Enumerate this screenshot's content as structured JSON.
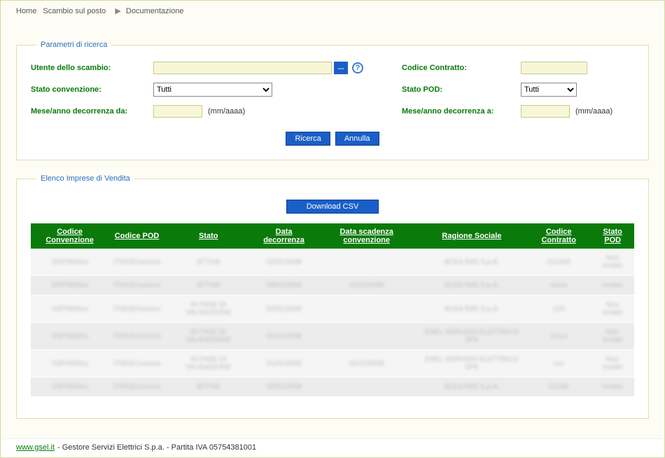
{
  "breadcrumb": {
    "home": "Home",
    "scambio": "Scambio sul posto",
    "documentazione": "Documentazione"
  },
  "fieldset1": {
    "legend": "Parametri di ricerca",
    "utente_label": "Utente dello scambio:",
    "utente_value": "",
    "ellipsis_label": "...",
    "codice_contratto_label": "Codice Contratto:",
    "codice_contratto_value": "",
    "stato_convenzione_label": "Stato convenzione:",
    "stato_convenzione_value": "Tutti",
    "stato_pod_label": "Stato POD:",
    "stato_pod_value": "Tutti",
    "decorrenza_da_label": "Mese/anno decorrenza da:",
    "decorrenza_da_value": "",
    "decorrenza_a_label": "Mese/anno decorrenza a:",
    "decorrenza_a_value": "",
    "hint": "(mm/aaaa)",
    "ricerca_btn": "Ricerca",
    "annulla_btn": "Annulla"
  },
  "fieldset2": {
    "legend": "Elenco Imprese di Vendita",
    "csv_btn": "Download CSV",
    "columns": {
      "c1": "Codice Convenzione",
      "c2": "Codice POD",
      "c3": "Stato",
      "c4": "Data decorrenza",
      "c5": "Data scadenza convenzione",
      "c6": "Ragione Sociale",
      "c7": "Codice Contratto",
      "c8": "Stato POD"
    },
    "rows": [
      {
        "c1": "SSP0000xx",
        "c2": "IT001E1xxxxxx",
        "c3": "ATTIVA",
        "c4": "01/01/2008",
        "c5": "",
        "c6": "ACEA RdS S.p.A.",
        "c7": "012345",
        "c8": "Non inviato"
      },
      {
        "c1": "SSP0000xx",
        "c2": "IT001E1xxxxxx",
        "c3": "ATTIVA",
        "c4": "06/01/2008",
        "c5": "31/12/2009",
        "c6": "ACEA RdS S.p.A.",
        "c7": "xxxxx",
        "c8": "Inviato"
      },
      {
        "c1": "SSP0000xx",
        "c2": "IT001E0xxxxxx",
        "c3": "IN FASE DI VALIDAZIONE",
        "c4": "02/01/2008",
        "c5": "",
        "c6": "ACEA RdS S.p.A.",
        "c7": "123",
        "c8": "Non inviato"
      },
      {
        "c1": "SSP0000xx",
        "c2": "IT001E1xxxxxx",
        "c3": "IN FASE DI VALIDAZIONE",
        "c4": "04/11/2008",
        "c5": "",
        "c6": "ENEL SERVIZIO ELETTRICO SPA",
        "c7": "xxxxx",
        "c8": "Non inviato"
      },
      {
        "c1": "SSP0000xx",
        "c2": "IT001E1xxxxxx",
        "c3": "IN FASE DI VALIDAZIONE",
        "c4": "01/01/2008",
        "c5": "31/12/2009",
        "c6": "ENEL SERVIZIO ELETTRICO SPA",
        "c7": "xxx",
        "c8": "Non inviato"
      },
      {
        "c1": "SSP0000xx",
        "c2": "IT001E1xxxxxx",
        "c3": "ATTIVA",
        "c4": "02/01/2008",
        "c5": "",
        "c6": "ACEA RdS S.p.A.",
        "c7": "01234",
        "c8": "Inviato"
      }
    ]
  },
  "footer": {
    "link": "www.gsel.it",
    "text": " - Gestore Servizi Elettrici S.p.a. - Partita IVA 05754381001"
  },
  "colors": {
    "green": "#0a7a0a",
    "blue": "#1a5fc8",
    "fieldset_border": "#e0dfb0",
    "input_bg": "#f7f7d8"
  }
}
